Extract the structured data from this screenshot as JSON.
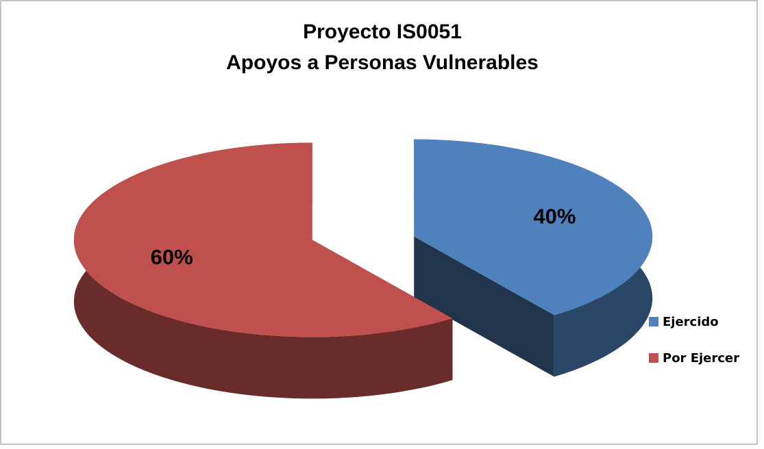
{
  "chart_data": {
    "type": "pie",
    "title": [
      "Proyecto IS0051",
      "Apoyos a Personas Vulnerables"
    ],
    "categories": [
      "Ejercido",
      "Por Ejercer"
    ],
    "values": [
      40,
      60
    ],
    "value_labels": [
      "40%",
      "60%"
    ],
    "colors": [
      "#4f81bd",
      "#c0504d"
    ],
    "legend": "right"
  }
}
